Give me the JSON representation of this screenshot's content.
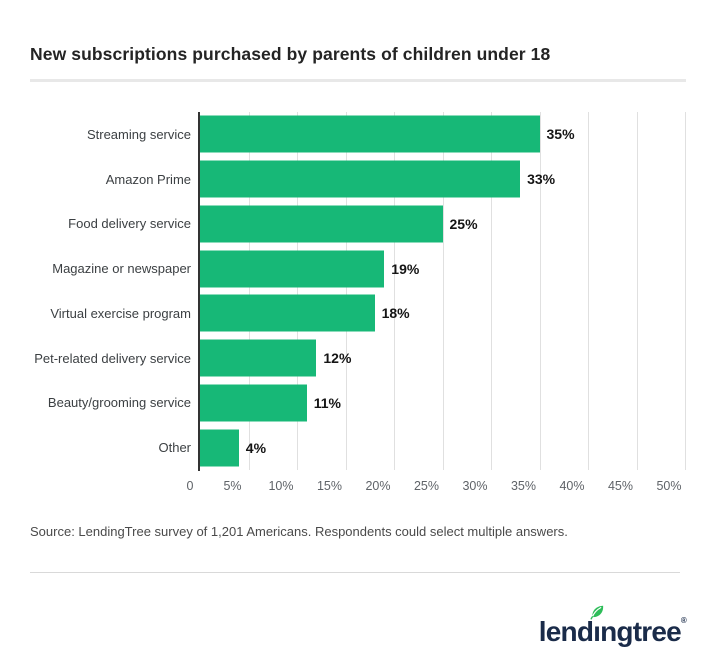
{
  "title": "New subscriptions purchased by parents of children under 18",
  "source_note": "Source: LendingTree survey of 1,201 Americans. Respondents could select multiple answers.",
  "logo": {
    "part1": "lend",
    "part2": "ı",
    "part3": "ngtree",
    "registered": "®"
  },
  "colors": {
    "bar": "#17B877",
    "leaf_green": "#2EBD59",
    "logo_navy": "#1A2B49",
    "gridline": "#E0E0E0",
    "axis_line": "#333333"
  },
  "chart_data": {
    "type": "bar",
    "orientation": "horizontal",
    "title": "New subscriptions purchased by parents of children under 18",
    "categories": [
      "Streaming service",
      "Amazon Prime",
      "Food delivery service",
      "Magazine or newspaper",
      "Virtual exercise program",
      "Pet-related delivery service",
      "Beauty/grooming service",
      "Other"
    ],
    "values": [
      35,
      33,
      25,
      19,
      18,
      12,
      11,
      4
    ],
    "value_labels": [
      "35%",
      "33%",
      "25%",
      "19%",
      "18%",
      "12%",
      "11%",
      "4%"
    ],
    "xlabel": "",
    "ylabel": "",
    "xlim": [
      0,
      50
    ],
    "grid": true,
    "legend": "none",
    "x_ticks": [
      {
        "value": 0,
        "label": "0"
      },
      {
        "value": 5,
        "label": "5%"
      },
      {
        "value": 10,
        "label": "10%"
      },
      {
        "value": 15,
        "label": "15%"
      },
      {
        "value": 20,
        "label": "20%"
      },
      {
        "value": 25,
        "label": "25%"
      },
      {
        "value": 30,
        "label": "30%"
      },
      {
        "value": 35,
        "label": "35%"
      },
      {
        "value": 40,
        "label": "40%"
      },
      {
        "value": 45,
        "label": "45%"
      },
      {
        "value": 50,
        "label": "50%"
      }
    ]
  }
}
